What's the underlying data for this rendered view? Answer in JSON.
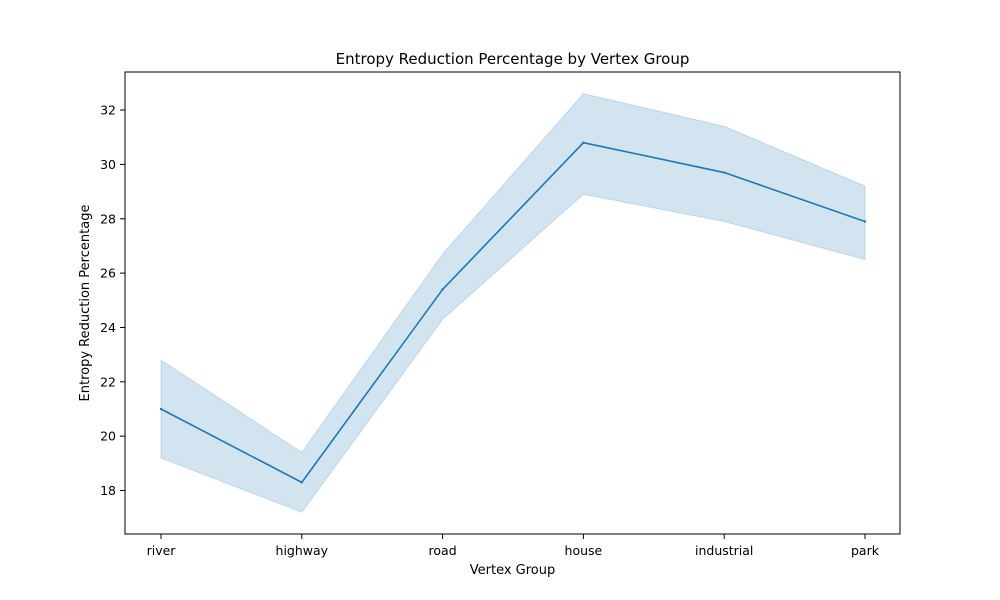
{
  "chart_data": {
    "type": "line",
    "title": "Entropy Reduction Percentage by Vertex Group",
    "xlabel": "Vertex Group",
    "ylabel": "Entropy Reduction Percentage",
    "categories": [
      "river",
      "highway",
      "road",
      "house",
      "industrial",
      "park"
    ],
    "series": [
      {
        "values": [
          21.0,
          18.3,
          25.4,
          30.8,
          29.7,
          27.9
        ],
        "ci_lower": [
          19.2,
          17.2,
          24.3,
          28.9,
          27.9,
          26.5
        ],
        "ci_upper": [
          22.8,
          19.4,
          26.7,
          32.6,
          31.4,
          29.2
        ],
        "color": "#1f77b4",
        "band_color": "#1f77b4"
      }
    ],
    "ylim": [
      16.4,
      33.4
    ],
    "yticks": [
      18,
      20,
      22,
      24,
      26,
      28,
      30,
      32
    ],
    "grid": false,
    "legend": "none"
  }
}
